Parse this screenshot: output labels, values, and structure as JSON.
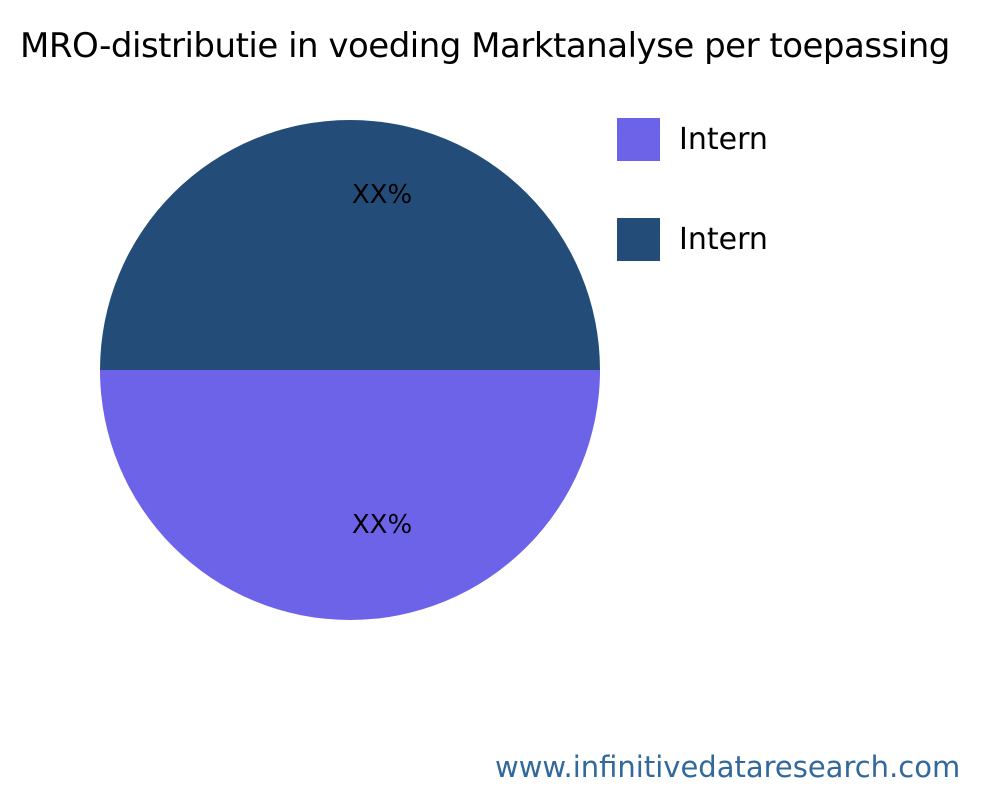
{
  "title": "MRO-distributie in voeding Marktanalyse per toepassing",
  "chart_data": {
    "type": "pie",
    "title": "MRO-distributie in voeding Marktanalyse per toepassing",
    "slices": [
      {
        "label": "Intern",
        "value": 50,
        "display_value": "XX%",
        "color": "#6C63E8"
      },
      {
        "label": "Intern",
        "value": 50,
        "display_value": "XX%",
        "color": "#234D78"
      }
    ],
    "legend_position": "right",
    "notes": "purple slice is bottom half, dark blue slice is top half"
  },
  "footer": {
    "url": "www.infinitivedataresearch.com"
  },
  "colors": {
    "slice_purple": "#6C63E8",
    "slice_dark_blue": "#234D78",
    "footer_link": "#33689B",
    "title_text": "#000000"
  }
}
